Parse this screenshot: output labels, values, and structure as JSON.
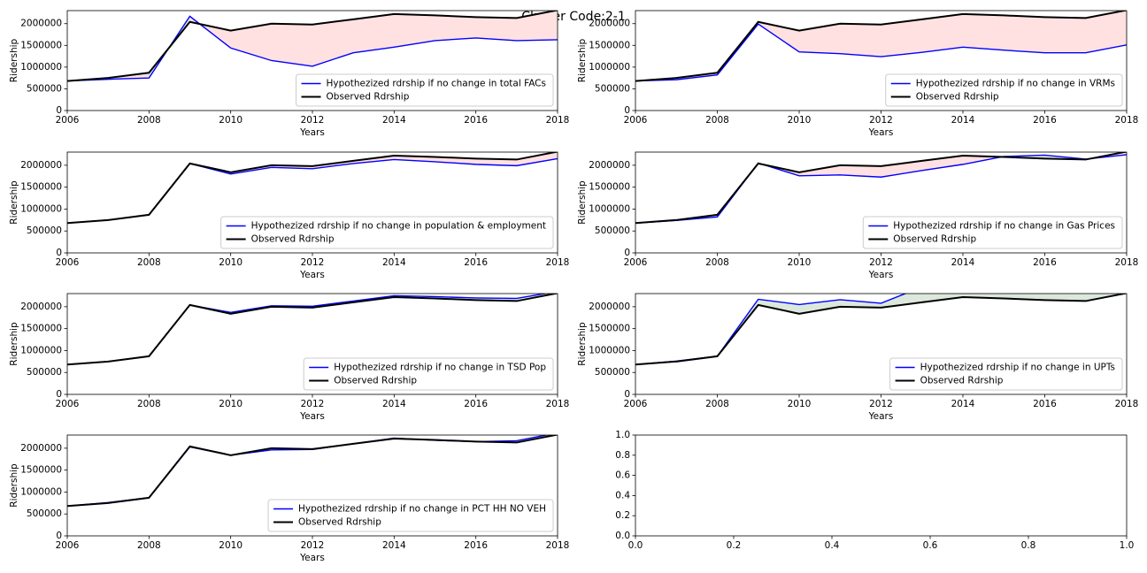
{
  "title": "Cluster Code:2-1",
  "chart_data": [
    {
      "type": "line",
      "xlabel": "Years",
      "ylabel": "Ridership",
      "x": [
        2006,
        2007,
        2008,
        2009,
        2010,
        2011,
        2012,
        2013,
        2014,
        2015,
        2016,
        2017,
        2018
      ],
      "series": [
        {
          "name": "Hypothezized rdrship if no change in total FACs",
          "color": "#0000ff",
          "values": [
            680000,
            720000,
            750000,
            2170000,
            1440000,
            1150000,
            1020000,
            1330000,
            1460000,
            1610000,
            1670000,
            1610000,
            1630000
          ]
        },
        {
          "name": "Observed Rdrship",
          "color": "#000000",
          "values": [
            680000,
            750000,
            870000,
            2040000,
            1840000,
            2000000,
            1980000,
            2100000,
            2220000,
            2190000,
            2150000,
            2130000,
            2310000
          ]
        }
      ],
      "fill_colors": {
        "below": "#ffe1e1",
        "above": "#dce8dc"
      },
      "xlim": [
        2006,
        2018
      ],
      "xticks": [
        2006,
        2008,
        2010,
        2012,
        2014,
        2016,
        2018
      ],
      "ylim": [
        0,
        2300000
      ],
      "yticks": [
        0,
        500000,
        1000000,
        1500000,
        2000000
      ],
      "legend": "lower right"
    },
    {
      "type": "line",
      "xlabel": "Years",
      "ylabel": "Ridership",
      "x": [
        2006,
        2007,
        2008,
        2009,
        2010,
        2011,
        2012,
        2013,
        2014,
        2015,
        2016,
        2017,
        2018
      ],
      "series": [
        {
          "name": "Hypothezized rdrship if no change in VRMs",
          "color": "#0000ff",
          "values": [
            680000,
            710000,
            820000,
            1990000,
            1350000,
            1310000,
            1240000,
            1340000,
            1460000,
            1390000,
            1330000,
            1330000,
            1510000
          ]
        },
        {
          "name": "Observed Rdrship",
          "color": "#000000",
          "values": [
            680000,
            750000,
            870000,
            2040000,
            1840000,
            2000000,
            1980000,
            2100000,
            2220000,
            2190000,
            2150000,
            2130000,
            2310000
          ]
        }
      ],
      "fill_colors": {
        "below": "#ffe1e1",
        "above": "#dce8dc"
      },
      "xlim": [
        2006,
        2018
      ],
      "xticks": [
        2006,
        2008,
        2010,
        2012,
        2014,
        2016,
        2018
      ],
      "ylim": [
        0,
        2300000
      ],
      "yticks": [
        0,
        500000,
        1000000,
        1500000,
        2000000
      ],
      "legend": "lower right"
    },
    {
      "type": "line",
      "xlabel": "Years",
      "ylabel": "Ridership",
      "x": [
        2006,
        2007,
        2008,
        2009,
        2010,
        2011,
        2012,
        2013,
        2014,
        2015,
        2016,
        2017,
        2018
      ],
      "series": [
        {
          "name": "Hypothezized rdrship if no change in population & employment",
          "color": "#0000ff",
          "values": [
            680000,
            750000,
            870000,
            2040000,
            1800000,
            1950000,
            1920000,
            2040000,
            2130000,
            2080000,
            2020000,
            1990000,
            2150000
          ]
        },
        {
          "name": "Observed Rdrship",
          "color": "#000000",
          "values": [
            680000,
            750000,
            870000,
            2040000,
            1840000,
            2000000,
            1980000,
            2100000,
            2220000,
            2190000,
            2150000,
            2130000,
            2310000
          ]
        }
      ],
      "fill_colors": {
        "below": "#ffe1e1",
        "above": "#dce8dc"
      },
      "xlim": [
        2006,
        2018
      ],
      "xticks": [
        2006,
        2008,
        2010,
        2012,
        2014,
        2016,
        2018
      ],
      "ylim": [
        0,
        2300000
      ],
      "yticks": [
        0,
        500000,
        1000000,
        1500000,
        2000000
      ],
      "legend": "lower right"
    },
    {
      "type": "line",
      "xlabel": "Years",
      "ylabel": "Ridership",
      "x": [
        2006,
        2007,
        2008,
        2009,
        2010,
        2011,
        2012,
        2013,
        2014,
        2015,
        2016,
        2017,
        2018
      ],
      "series": [
        {
          "name": "Hypothezized rdrship if no change in Gas Prices",
          "color": "#0000ff",
          "values": [
            680000,
            740000,
            820000,
            2050000,
            1760000,
            1780000,
            1730000,
            1880000,
            2020000,
            2200000,
            2230000,
            2140000,
            2240000
          ]
        },
        {
          "name": "Observed Rdrship",
          "color": "#000000",
          "values": [
            680000,
            750000,
            870000,
            2040000,
            1840000,
            2000000,
            1980000,
            2100000,
            2220000,
            2190000,
            2150000,
            2130000,
            2310000
          ]
        }
      ],
      "fill_colors": {
        "below": "#ffe1e1",
        "above": "#dce8dc"
      },
      "xlim": [
        2006,
        2018
      ],
      "xticks": [
        2006,
        2008,
        2010,
        2012,
        2014,
        2016,
        2018
      ],
      "ylim": [
        0,
        2300000
      ],
      "yticks": [
        0,
        500000,
        1000000,
        1500000,
        2000000
      ],
      "legend": "lower right"
    },
    {
      "type": "line",
      "xlabel": "Years",
      "ylabel": "Ridership",
      "x": [
        2006,
        2007,
        2008,
        2009,
        2010,
        2011,
        2012,
        2013,
        2014,
        2015,
        2016,
        2017,
        2018
      ],
      "series": [
        {
          "name": "Hypothezized rdrship if no change in TSD Pop",
          "color": "#0000ff",
          "values": [
            680000,
            750000,
            870000,
            2040000,
            1870000,
            2020000,
            2010000,
            2130000,
            2250000,
            2230000,
            2200000,
            2190000,
            2350000
          ]
        },
        {
          "name": "Observed Rdrship",
          "color": "#000000",
          "values": [
            680000,
            750000,
            870000,
            2040000,
            1840000,
            2000000,
            1980000,
            2100000,
            2220000,
            2190000,
            2150000,
            2130000,
            2310000
          ]
        }
      ],
      "fill_colors": {
        "below": "#ffe1e1",
        "above": "#dce8dc"
      },
      "xlim": [
        2006,
        2018
      ],
      "xticks": [
        2006,
        2008,
        2010,
        2012,
        2014,
        2016,
        2018
      ],
      "ylim": [
        0,
        2300000
      ],
      "yticks": [
        0,
        500000,
        1000000,
        1500000,
        2000000
      ],
      "legend": "lower right"
    },
    {
      "type": "line",
      "xlabel": "Years",
      "ylabel": "Ridership",
      "x": [
        2006,
        2007,
        2008,
        2009,
        2010,
        2011,
        2012,
        2013,
        2014,
        2015,
        2016,
        2017,
        2018
      ],
      "series": [
        {
          "name": "Hypothezized rdrship if no change in UPTs",
          "color": "#0000ff",
          "values": [
            680000,
            760000,
            870000,
            2170000,
            2050000,
            2160000,
            2080000,
            2450000,
            2600000,
            2600000,
            2550000,
            2500000,
            2350000
          ]
        },
        {
          "name": "Observed Rdrship",
          "color": "#000000",
          "values": [
            680000,
            750000,
            870000,
            2040000,
            1840000,
            2000000,
            1980000,
            2100000,
            2220000,
            2190000,
            2150000,
            2130000,
            2310000
          ]
        }
      ],
      "fill_colors": {
        "below": "#ffe1e1",
        "above": "#dce8dc"
      },
      "xlim": [
        2006,
        2018
      ],
      "xticks": [
        2006,
        2008,
        2010,
        2012,
        2014,
        2016,
        2018
      ],
      "ylim": [
        0,
        2300000
      ],
      "yticks": [
        0,
        500000,
        1000000,
        1500000,
        2000000
      ],
      "legend": "lower right"
    },
    {
      "type": "line",
      "xlabel": "Years",
      "ylabel": "Ridership",
      "x": [
        2006,
        2007,
        2008,
        2009,
        2010,
        2011,
        2012,
        2013,
        2014,
        2015,
        2016,
        2017,
        2018
      ],
      "series": [
        {
          "name": "Hypothezized rdrship if no change in PCT HH NO VEH",
          "color": "#0000ff",
          "values": [
            680000,
            760000,
            870000,
            2030000,
            1840000,
            1960000,
            1970000,
            2100000,
            2230000,
            2180000,
            2150000,
            2170000,
            2350000
          ]
        },
        {
          "name": "Observed Rdrship",
          "color": "#000000",
          "values": [
            680000,
            750000,
            870000,
            2040000,
            1840000,
            2000000,
            1980000,
            2100000,
            2220000,
            2190000,
            2150000,
            2130000,
            2310000
          ]
        }
      ],
      "fill_colors": {
        "below": "#ffe1e1",
        "above": "#dce8dc"
      },
      "xlim": [
        2006,
        2018
      ],
      "xticks": [
        2006,
        2008,
        2010,
        2012,
        2014,
        2016,
        2018
      ],
      "ylim": [
        0,
        2300000
      ],
      "yticks": [
        0,
        500000,
        1000000,
        1500000,
        2000000
      ],
      "legend": "lower right"
    },
    {
      "type": "line",
      "xlim": [
        0,
        1
      ],
      "xticks": [
        {
          "value": 0,
          "label": "0.0"
        },
        {
          "value": 0.2,
          "label": "0.2"
        },
        {
          "value": 0.4,
          "label": "0.4"
        },
        {
          "value": 0.6,
          "label": "0.6"
        },
        {
          "value": 0.8,
          "label": "0.8"
        },
        {
          "value": 1,
          "label": "1.0"
        }
      ],
      "ylim": [
        0,
        1
      ],
      "yticks": [
        {
          "value": 0,
          "label": "0.0"
        },
        {
          "value": 0.2,
          "label": "0.2"
        },
        {
          "value": 0.4,
          "label": "0.4"
        },
        {
          "value": 0.6,
          "label": "0.6"
        },
        {
          "value": 0.8,
          "label": "0.8"
        },
        {
          "value": 1,
          "label": "1.0"
        }
      ]
    }
  ]
}
